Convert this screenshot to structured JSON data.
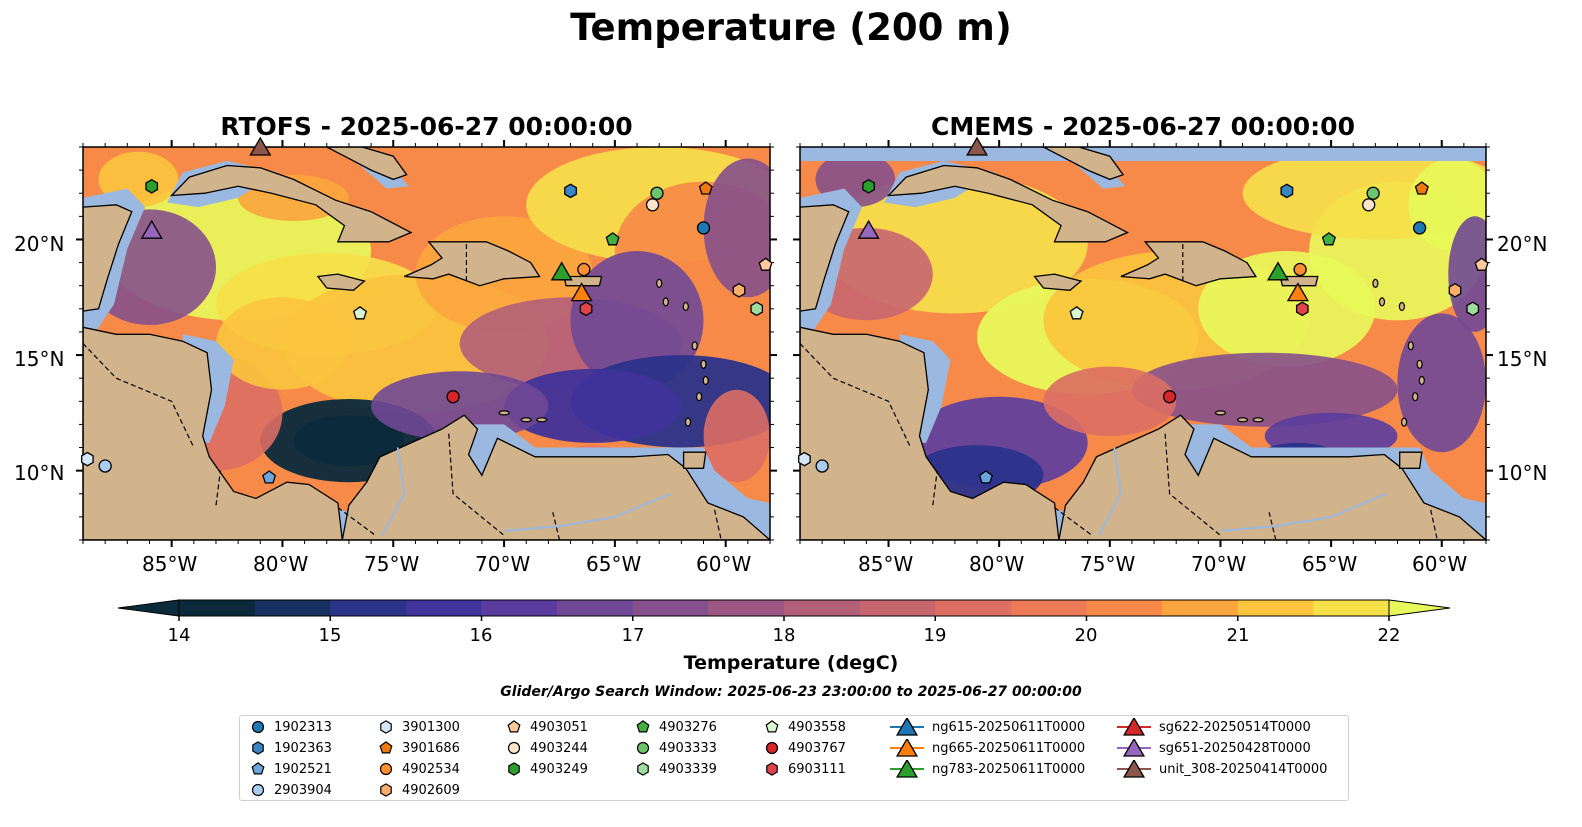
{
  "title": "Temperature (200 m)",
  "panels": [
    {
      "title": "RTOFS - 2025-06-27 00:00:00"
    },
    {
      "title": "CMEMS - 2025-06-27 00:00:00"
    }
  ],
  "map": {
    "lon_range": [
      -89,
      -58
    ],
    "lat_range": [
      7,
      24
    ],
    "lon_ticks": [
      "85°W",
      "80°W",
      "75°W",
      "70°W",
      "65°W",
      "60°W"
    ],
    "lat_ticks": [
      "20°N",
      "15°N",
      "10°N"
    ],
    "land_color": "#d2b48c",
    "shelf_color": "#9ab8e0"
  },
  "colorbar": {
    "label": "Temperature (degC)",
    "ticks": [
      "14",
      "15",
      "16",
      "17",
      "18",
      "19",
      "20",
      "21",
      "22"
    ],
    "range": [
      14,
      22
    ],
    "colormap": "thermal",
    "colors": [
      "#0b2a3c",
      "#17305f",
      "#2b338a",
      "#40339a",
      "#5a3c9e",
      "#704896",
      "#86508c",
      "#9c5883",
      "#b25f7a",
      "#c86670",
      "#dc6e64",
      "#ec7a57",
      "#f78a48",
      "#fba53e",
      "#fbc43e",
      "#f6e04a",
      "#e8f85a"
    ]
  },
  "search_window": "Glider/Argo Search Window: 2025-06-23 23:00:00 to 2025-06-27 00:00:00",
  "legend": [
    {
      "label": "1902313",
      "marker": "circle",
      "color": "#1f77b4"
    },
    {
      "label": "1902363",
      "marker": "hexagon",
      "color": "#3a86c4"
    },
    {
      "label": "1902521",
      "marker": "pentagon",
      "color": "#6aa6dc"
    },
    {
      "label": "2903904",
      "marker": "circle",
      "color": "#a9cdf0"
    },
    {
      "label": "3901300",
      "marker": "hexagon",
      "color": "#d4e8fa"
    },
    {
      "label": "3901686",
      "marker": "pentagon",
      "color": "#f07a10"
    },
    {
      "label": "4902534",
      "marker": "circle",
      "color": "#fb8e30"
    },
    {
      "label": "4902609",
      "marker": "hexagon",
      "color": "#fdae6b"
    },
    {
      "label": "4903051",
      "marker": "pentagon",
      "color": "#fdc99a"
    },
    {
      "label": "4903244",
      "marker": "circle",
      "color": "#fde4cc"
    },
    {
      "label": "4903249",
      "marker": "hexagon",
      "color": "#2ca02c"
    },
    {
      "label": "4903276",
      "marker": "pentagon",
      "color": "#41b041"
    },
    {
      "label": "4903333",
      "marker": "circle",
      "color": "#6cc46c"
    },
    {
      "label": "4903339",
      "marker": "hexagon",
      "color": "#a0dca0"
    },
    {
      "label": "4903558",
      "marker": "pentagon",
      "color": "#d6f5d0"
    },
    {
      "label": "4903767",
      "marker": "circle",
      "color": "#d62728"
    },
    {
      "label": "6903111",
      "marker": "hexagon",
      "color": "#e0444a"
    },
    {
      "label": "ng615-20250611T0000",
      "marker": "triangle-line",
      "color": "#1f77b4"
    },
    {
      "label": "ng665-20250611T0000",
      "marker": "triangle-line",
      "color": "#ff7f0e"
    },
    {
      "label": "ng783-20250611T0000",
      "marker": "triangle-line",
      "color": "#2ca02c"
    },
    {
      "label": "sg622-20250514T0000",
      "marker": "triangle-line",
      "color": "#d62728"
    },
    {
      "label": "sg651-20250428T0000",
      "marker": "triangle-line",
      "color": "#9467bd"
    },
    {
      "label": "unit_308-20250414T0000",
      "marker": "triangle-line",
      "color": "#8c564b"
    }
  ],
  "observations": [
    {
      "id": "1902313",
      "lon": -61.0,
      "lat": 20.5
    },
    {
      "id": "1902363",
      "lon": -67.0,
      "lat": 22.1
    },
    {
      "id": "1902521",
      "lon": -80.6,
      "lat": 9.7
    },
    {
      "id": "2903904",
      "lon": -88.0,
      "lat": 10.2
    },
    {
      "id": "3901300",
      "lon": -88.8,
      "lat": 10.5
    },
    {
      "id": "3901686",
      "lon": -60.9,
      "lat": 22.2
    },
    {
      "id": "4902534",
      "lon": -66.4,
      "lat": 18.7
    },
    {
      "id": "4902609",
      "lon": -59.4,
      "lat": 17.8
    },
    {
      "id": "4903051",
      "lon": -58.2,
      "lat": 18.9
    },
    {
      "id": "4903244",
      "lon": -63.3,
      "lat": 21.5
    },
    {
      "id": "4903249",
      "lon": -85.9,
      "lat": 22.3
    },
    {
      "id": "4903276",
      "lon": -65.1,
      "lat": 20.0
    },
    {
      "id": "4903333",
      "lon": -63.1,
      "lat": 22.0
    },
    {
      "id": "4903339",
      "lon": -58.6,
      "lat": 17.0
    },
    {
      "id": "4903558",
      "lon": -76.5,
      "lat": 16.8
    },
    {
      "id": "4903767",
      "lon": -72.3,
      "lat": 13.2
    },
    {
      "id": "6903111",
      "lon": -66.3,
      "lat": 17.0
    },
    {
      "id": "ng665-20250611T0000",
      "lon": -66.5,
      "lat": 17.7
    },
    {
      "id": "ng783-20250611T0000",
      "lon": -67.4,
      "lat": 18.6
    },
    {
      "id": "sg651-20250428T0000",
      "lon": -85.9,
      "lat": 20.4
    },
    {
      "id": "unit_308-20250414T0000",
      "lon": -81.0,
      "lat": 24.0
    }
  ]
}
